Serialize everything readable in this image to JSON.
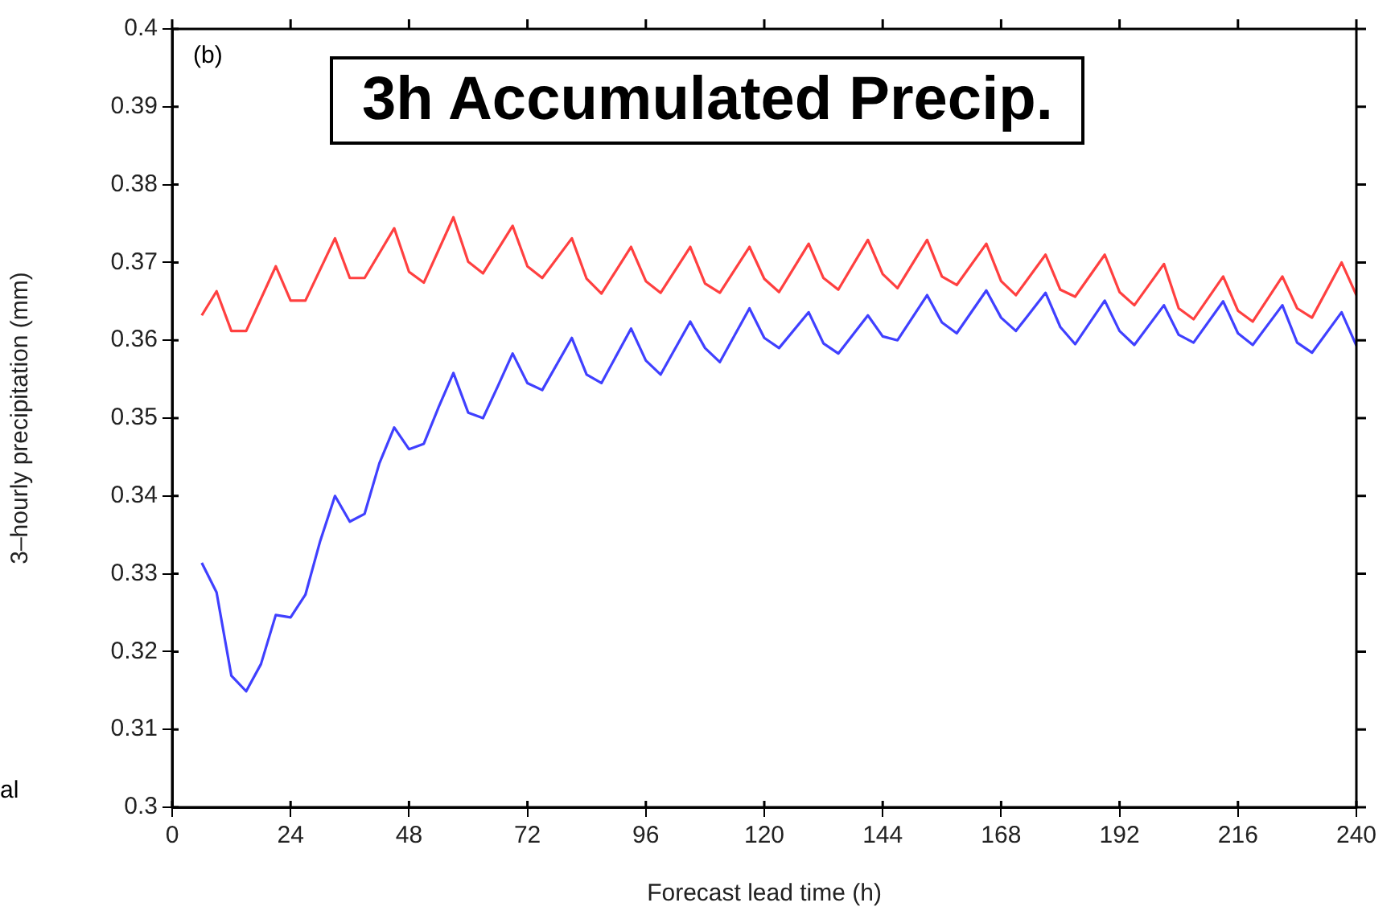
{
  "chart_data": {
    "type": "line",
    "title": "3h Accumulated Precip.",
    "xlabel": "Forecast lead time (h)",
    "ylabel": "3–hourly precipitation (mm)",
    "annotations": [
      "(b)",
      "al"
    ],
    "xlim": [
      0,
      240
    ],
    "xticks": [
      0,
      24,
      48,
      72,
      96,
      120,
      144,
      168,
      192,
      216,
      240
    ],
    "ylim": [
      0.3,
      0.4
    ],
    "yticks": [
      0.3,
      0.31,
      0.32,
      0.33,
      0.34,
      0.35,
      0.36,
      0.37,
      0.38,
      0.39,
      0.4
    ],
    "series": [
      {
        "color": "#ff4040",
        "x": [
          6,
          9,
          12,
          15,
          21,
          24,
          27,
          33,
          36,
          39,
          45,
          48,
          51,
          57,
          60,
          63,
          69,
          72,
          75,
          81,
          84,
          87,
          93,
          96,
          99,
          105,
          108,
          111,
          117,
          120,
          123,
          129,
          132,
          135,
          141,
          144,
          147,
          153,
          156,
          159,
          165,
          168,
          171,
          177,
          180,
          183,
          189,
          192,
          195,
          201,
          204,
          207,
          213,
          216,
          219,
          225,
          228,
          231,
          237,
          240
        ],
        "values": [
          0.3632,
          0.3663,
          0.3612,
          0.3612,
          0.3695,
          0.3651,
          0.3651,
          0.3731,
          0.368,
          0.368,
          0.3744,
          0.3688,
          0.3674,
          0.3758,
          0.3701,
          0.3686,
          0.3747,
          0.3695,
          0.368,
          0.3731,
          0.3679,
          0.366,
          0.372,
          0.3676,
          0.3661,
          0.372,
          0.3673,
          0.3661,
          0.372,
          0.3679,
          0.3662,
          0.3724,
          0.368,
          0.3665,
          0.3729,
          0.3685,
          0.3667,
          0.3729,
          0.3682,
          0.3671,
          0.3724,
          0.3676,
          0.3658,
          0.371,
          0.3665,
          0.3656,
          0.371,
          0.3662,
          0.3645,
          0.3698,
          0.3641,
          0.3627,
          0.3682,
          0.3638,
          0.3624,
          0.3682,
          0.3641,
          0.3629,
          0.37,
          0.3658
        ]
      },
      {
        "color": "#4040ff",
        "x": [
          6,
          9,
          12,
          15,
          18,
          21,
          24,
          27,
          30,
          33,
          36,
          39,
          42,
          45,
          48,
          51,
          54,
          57,
          60,
          63,
          66,
          69,
          72,
          75,
          81,
          84,
          87,
          93,
          96,
          99,
          105,
          108,
          111,
          117,
          120,
          123,
          129,
          132,
          135,
          141,
          144,
          147,
          153,
          156,
          159,
          165,
          168,
          171,
          177,
          180,
          183,
          189,
          192,
          195,
          201,
          204,
          207,
          213,
          216,
          219,
          225,
          228,
          231,
          237,
          240
        ],
        "values": [
          0.3314,
          0.3276,
          0.3169,
          0.3149,
          0.3184,
          0.3247,
          0.3244,
          0.3273,
          0.3342,
          0.34,
          0.3367,
          0.3377,
          0.3442,
          0.3488,
          0.346,
          0.3467,
          0.3514,
          0.3558,
          0.3507,
          0.35,
          0.3541,
          0.3583,
          0.3545,
          0.3536,
          0.3603,
          0.3556,
          0.3545,
          0.3615,
          0.3574,
          0.3556,
          0.3624,
          0.359,
          0.3572,
          0.3641,
          0.3603,
          0.359,
          0.3636,
          0.3596,
          0.3583,
          0.3632,
          0.3605,
          0.36,
          0.3658,
          0.3623,
          0.3609,
          0.3664,
          0.3629,
          0.3612,
          0.3661,
          0.3617,
          0.3595,
          0.3651,
          0.3612,
          0.3594,
          0.3645,
          0.3607,
          0.3597,
          0.365,
          0.3609,
          0.3594,
          0.3645,
          0.3597,
          0.3584,
          0.3636,
          0.3593
        ]
      }
    ]
  }
}
